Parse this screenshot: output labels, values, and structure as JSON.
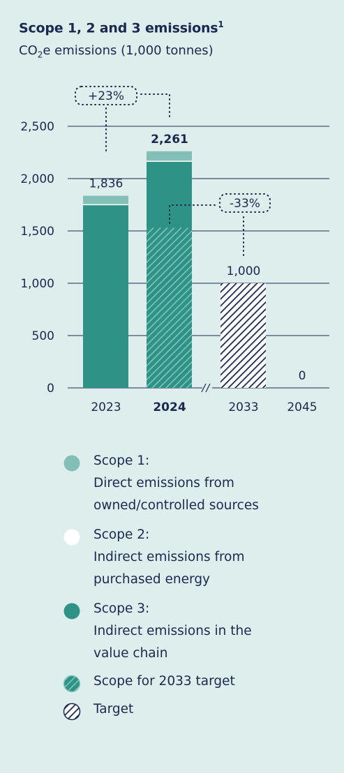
{
  "chart_data": {
    "type": "bar",
    "title": "Scope 1, 2 and 3 emissions",
    "title_note": "1",
    "subtitle_prefix": "CO",
    "subtitle_sub": "2",
    "subtitle_suffix": "e emissions (1,000 tonnes)",
    "categories": [
      "2023",
      "2024",
      "2033",
      "2045"
    ],
    "bold_category": "2024",
    "ylim": [
      0,
      2500
    ],
    "yticks": [
      0,
      500,
      1000,
      1500,
      2000,
      2500
    ],
    "ytick_labels": [
      "0",
      "500",
      "1,000",
      "1,500",
      "2,000",
      "2,500"
    ],
    "grid": true,
    "series": [
      {
        "name": "Scope 1:\nDirect emissions from\nowned/controlled sources",
        "key": "scope1",
        "values": [
          80,
          90,
          0,
          0
        ]
      },
      {
        "name": "Scope 2:\nIndirect emissions from\npurchased energy",
        "key": "scope2",
        "values": [
          10,
          10,
          0,
          0
        ]
      },
      {
        "name": "Scope 3:\nIndirect emissions in the\nvalue chain",
        "key": "scope3",
        "values": [
          1746,
          2161,
          0,
          0
        ]
      },
      {
        "name": "Scope for 2033 target",
        "key": "scope_target",
        "values": [
          0,
          1530,
          0,
          0
        ]
      },
      {
        "name": "Target",
        "key": "target",
        "values": [
          0,
          0,
          1000,
          0
        ]
      }
    ],
    "totals": [
      "1,836",
      "2,261",
      "1,000",
      "0"
    ],
    "annotations": [
      {
        "text": "+23%",
        "from": "2023",
        "to": "2024"
      },
      {
        "text": "-33%",
        "from": "2024",
        "to": "2033"
      }
    ],
    "colors": {
      "scope1": "#84bfb7",
      "scope2": "#ffffff",
      "scope3": "#2e9287",
      "scope_target": "#2e9287",
      "target": "#1b2850",
      "text": "#1b2850",
      "background": "#ddeeed"
    },
    "legend_placement": "bottom"
  }
}
